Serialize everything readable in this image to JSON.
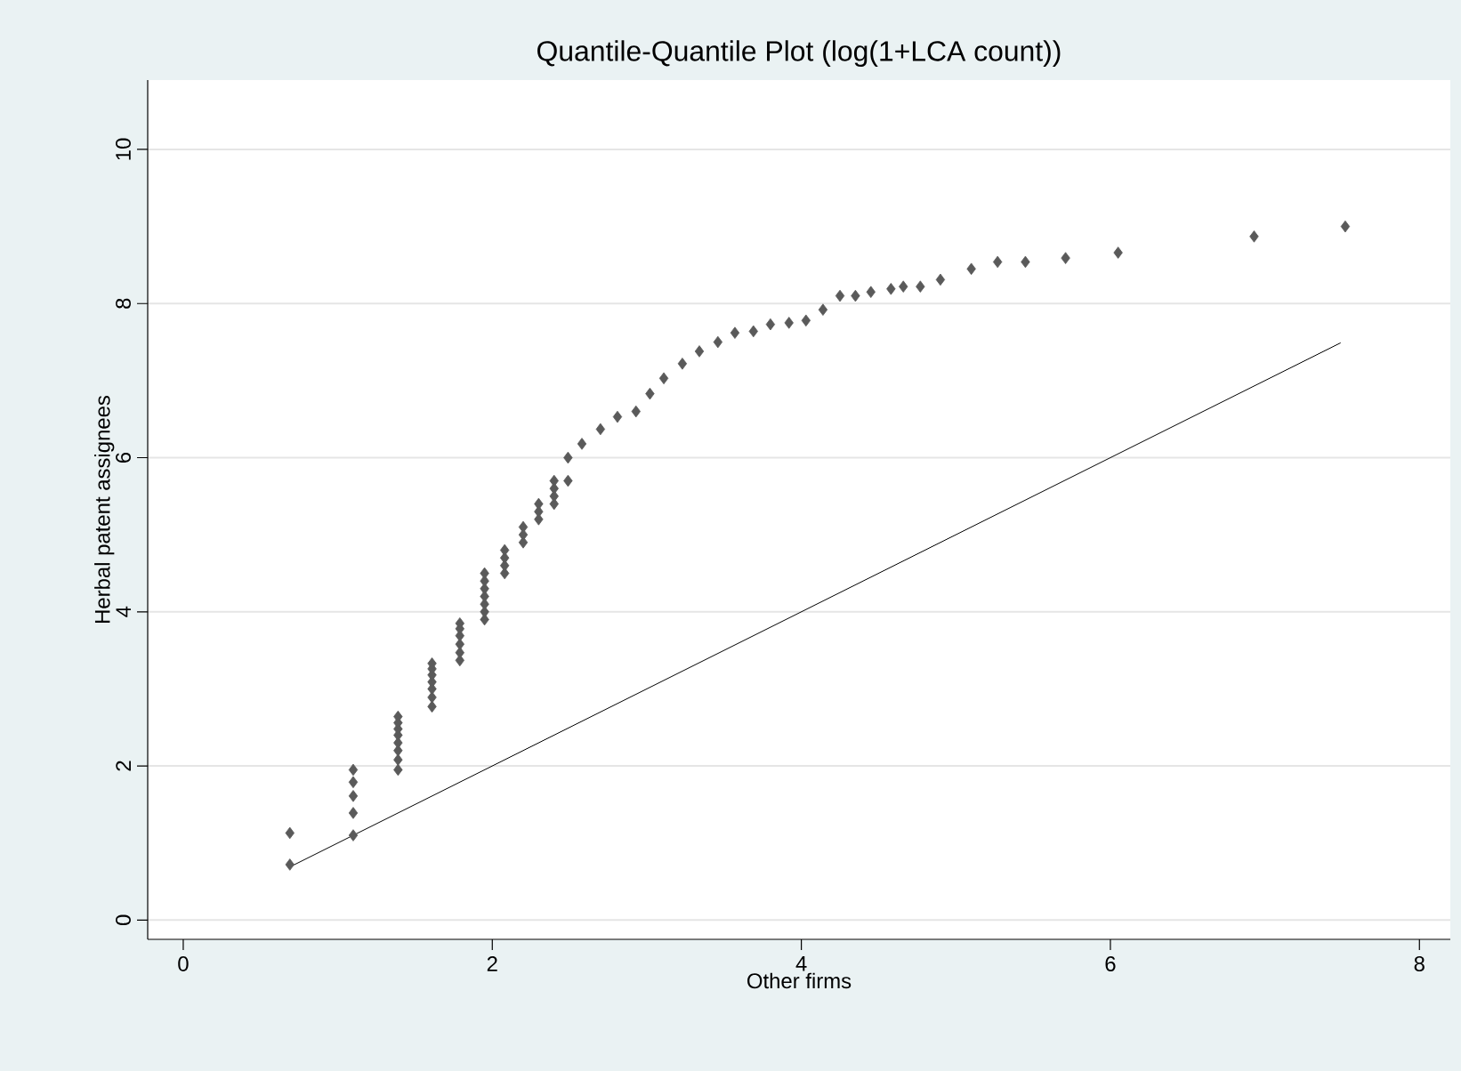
{
  "chart_data": {
    "type": "scatter",
    "title": "Quantile-Quantile Plot (log(1+LCA count))",
    "xlabel": "Other firms",
    "ylabel": "Herbal patent assignees",
    "xlim": [
      -0.23,
      8.2
    ],
    "ylim": [
      -0.25,
      10.9
    ],
    "xticks": [
      0,
      2,
      4,
      6,
      8
    ],
    "yticks": [
      0,
      2,
      4,
      6,
      8,
      10
    ],
    "grid": "y",
    "marker": "diamond",
    "series": [
      {
        "color": "#5a5a5a",
        "x": [
          0.69,
          0.69,
          1.1,
          1.1,
          1.1,
          1.1,
          1.1,
          1.39,
          1.39,
          1.39,
          1.39,
          1.39,
          1.39,
          1.39,
          1.39,
          1.61,
          1.61,
          1.61,
          1.61,
          1.61,
          1.61,
          1.61,
          1.79,
          1.79,
          1.79,
          1.79,
          1.79,
          1.79,
          1.95,
          1.95,
          1.95,
          1.95,
          1.95,
          1.95,
          1.95,
          2.08,
          2.08,
          2.08,
          2.08,
          2.2,
          2.2,
          2.2,
          2.3,
          2.3,
          2.3,
          2.4,
          2.4,
          2.4,
          2.4,
          2.49,
          2.49,
          2.58,
          2.7,
          2.81,
          2.93,
          3.02,
          3.11,
          3.23,
          3.34,
          3.46,
          3.57,
          3.69,
          3.8,
          3.92,
          4.03,
          4.14,
          4.25,
          4.35,
          4.45,
          4.58,
          4.66,
          4.77,
          4.9,
          5.1,
          5.27,
          5.45,
          5.71,
          6.05,
          6.93,
          7.52
        ],
        "values": [
          0.72,
          1.13,
          1.1,
          1.39,
          1.61,
          1.79,
          1.95,
          1.95,
          2.08,
          2.2,
          2.3,
          2.4,
          2.48,
          2.56,
          2.64,
          2.77,
          2.89,
          3.0,
          3.09,
          3.18,
          3.26,
          3.33,
          3.37,
          3.47,
          3.58,
          3.69,
          3.78,
          3.85,
          3.9,
          4.0,
          4.1,
          4.2,
          4.3,
          4.4,
          4.5,
          4.5,
          4.6,
          4.7,
          4.8,
          4.9,
          5.0,
          5.1,
          5.2,
          5.3,
          5.4,
          5.4,
          5.5,
          5.6,
          5.7,
          5.7,
          6.0,
          6.18,
          6.37,
          6.53,
          6.6,
          6.83,
          7.03,
          7.22,
          7.38,
          7.5,
          7.62,
          7.64,
          7.73,
          7.75,
          7.78,
          7.92,
          8.1,
          8.1,
          8.15,
          8.19,
          8.22,
          8.22,
          8.31,
          8.45,
          8.54,
          8.54,
          8.59,
          8.66,
          8.87,
          9.0
        ]
      },
      {
        "type": "line",
        "color": "#000000",
        "marker": "none",
        "x": [
          0.69,
          7.49
        ],
        "values": [
          0.69,
          7.49
        ]
      }
    ]
  }
}
